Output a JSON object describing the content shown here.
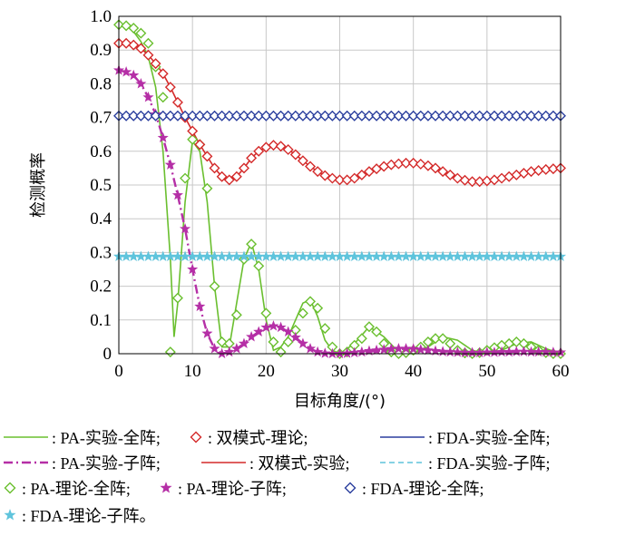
{
  "chart_data": {
    "type": "line",
    "xlabel": "目标角度/(°)",
    "ylabel": "检测概率",
    "xlim": [
      0,
      60
    ],
    "ylim": [
      0,
      1.0
    ],
    "xticks": [
      "0",
      "10",
      "20",
      "30",
      "40",
      "50",
      "60"
    ],
    "yticks": [
      "0",
      "0.1",
      "0.2",
      "0.3",
      "0.4",
      "0.5",
      "0.6",
      "0.7",
      "0.8",
      "0.9",
      "1.0"
    ],
    "grid": true,
    "legend_position": "bottom",
    "series": [
      {
        "name": ": PA-实验-全阵;",
        "color": "#6abf2f",
        "style": "solid",
        "marker": "none",
        "x": [
          0,
          1,
          2,
          3,
          4,
          5,
          6,
          7,
          7.5,
          8,
          9,
          10,
          11,
          12,
          13,
          14,
          15,
          16,
          17,
          18,
          19,
          20,
          21,
          22,
          23,
          24,
          25,
          26,
          27,
          28,
          29,
          30,
          32,
          34,
          36,
          38,
          40,
          42,
          44,
          46,
          48,
          50,
          52,
          54,
          56,
          58,
          60
        ],
        "y": [
          0.975,
          0.972,
          0.955,
          0.925,
          0.88,
          0.79,
          0.6,
          0.28,
          0.05,
          0.15,
          0.45,
          0.63,
          0.6,
          0.45,
          0.2,
          0.02,
          0.02,
          0.15,
          0.28,
          0.33,
          0.25,
          0.1,
          0.01,
          0.02,
          0.05,
          0.1,
          0.15,
          0.16,
          0.11,
          0.04,
          0.01,
          0.0,
          0.03,
          0.08,
          0.05,
          0.005,
          0.0,
          0.02,
          0.05,
          0.04,
          0.01,
          0.0,
          0.01,
          0.03,
          0.035,
          0.015,
          0.0
        ]
      },
      {
        "name": ": PA-实验-子阵;",
        "color": "#b52fa6",
        "style": "dashdot",
        "marker": "none",
        "x": [
          0,
          1,
          2,
          3,
          4,
          5,
          6,
          7,
          8,
          9,
          10,
          11,
          12,
          13,
          14,
          15,
          16,
          17,
          18,
          19,
          20,
          21,
          22,
          23,
          24,
          25,
          26,
          27,
          28,
          29,
          30,
          33,
          36,
          39,
          42,
          45,
          48,
          51,
          54,
          57,
          60
        ],
        "y": [
          0.84,
          0.835,
          0.825,
          0.8,
          0.76,
          0.71,
          0.64,
          0.56,
          0.47,
          0.37,
          0.25,
          0.14,
          0.06,
          0.015,
          0.0,
          0.005,
          0.015,
          0.03,
          0.05,
          0.065,
          0.078,
          0.082,
          0.078,
          0.065,
          0.048,
          0.03,
          0.015,
          0.005,
          0.001,
          0.0,
          0.0,
          0.004,
          0.01,
          0.015,
          0.012,
          0.005,
          0.002,
          0.004,
          0.006,
          0.005,
          0.004
        ]
      },
      {
        "name": ": 双模式-实验;",
        "color": "#d42a2a",
        "style": "solid",
        "marker": "none",
        "x": [
          0,
          1,
          2,
          3,
          4,
          5,
          6,
          7,
          8,
          9,
          10,
          11,
          12,
          13,
          14,
          15,
          16,
          17,
          18,
          19,
          20,
          21,
          22,
          23,
          24,
          25,
          26,
          27,
          28,
          29,
          30,
          31,
          32,
          33,
          34,
          35,
          36,
          37,
          38,
          39,
          40,
          41,
          42,
          43,
          44,
          45,
          46,
          47,
          48,
          49,
          50,
          51,
          52,
          53,
          54,
          55,
          56,
          57,
          58,
          59,
          60
        ],
        "y": [
          0.92,
          0.92,
          0.915,
          0.905,
          0.885,
          0.86,
          0.83,
          0.79,
          0.745,
          0.7,
          0.66,
          0.62,
          0.585,
          0.55,
          0.525,
          0.515,
          0.525,
          0.55,
          0.58,
          0.6,
          0.612,
          0.618,
          0.615,
          0.605,
          0.59,
          0.572,
          0.555,
          0.54,
          0.528,
          0.52,
          0.515,
          0.515,
          0.52,
          0.53,
          0.54,
          0.548,
          0.555,
          0.56,
          0.563,
          0.565,
          0.565,
          0.562,
          0.557,
          0.55,
          0.54,
          0.53,
          0.52,
          0.514,
          0.51,
          0.51,
          0.512,
          0.515,
          0.52,
          0.525,
          0.53,
          0.535,
          0.54,
          0.543,
          0.546,
          0.548,
          0.55
        ]
      },
      {
        "name": ": FDA-实验-全阵;",
        "color": "#2b3f9e",
        "style": "solid",
        "marker": "none",
        "x": [
          0,
          60
        ],
        "y": [
          0.705,
          0.705
        ]
      },
      {
        "name": ": FDA-实验-子阵;",
        "color": "#5fc4dc",
        "style": "dashed",
        "marker": "none",
        "x": [
          0,
          60
        ],
        "y": [
          0.288,
          0.288
        ]
      },
      {
        "name": ": PA-理论-全阵;",
        "color": "#6abf2f",
        "style": "none",
        "marker": "diamond",
        "x": [
          0,
          1,
          2,
          3,
          4,
          5,
          6,
          7,
          8,
          9,
          10,
          11,
          12,
          13,
          14,
          15,
          16,
          17,
          18,
          19,
          20,
          21,
          22,
          23,
          24,
          25,
          26,
          27,
          28,
          29,
          30,
          31,
          32,
          33,
          34,
          35,
          36,
          37,
          38,
          39,
          40,
          41,
          42,
          43,
          44,
          45,
          46,
          47,
          48,
          49,
          50,
          51,
          52,
          53,
          54,
          55,
          56,
          57,
          58,
          59,
          60
        ],
        "y": [
          0.975,
          0.972,
          0.965,
          0.95,
          0.92,
          0.85,
          0.76,
          0.005,
          0.165,
          0.52,
          0.635,
          0.62,
          0.49,
          0.2,
          0.035,
          0.03,
          0.115,
          0.28,
          0.325,
          0.26,
          0.12,
          0.035,
          0.005,
          0.035,
          0.07,
          0.12,
          0.155,
          0.135,
          0.075,
          0.02,
          0.0,
          0.005,
          0.025,
          0.045,
          0.08,
          0.065,
          0.03,
          0.005,
          0.0,
          0.003,
          0.01,
          0.02,
          0.035,
          0.045,
          0.045,
          0.03,
          0.01,
          0.002,
          0.0,
          0.003,
          0.01,
          0.018,
          0.025,
          0.03,
          0.035,
          0.03,
          0.02,
          0.01,
          0.003,
          0.0,
          0.0
        ]
      },
      {
        "name": ": PA-理论-子阵;",
        "color": "#b52fa6",
        "style": "none",
        "marker": "star",
        "x": [
          0,
          1,
          2,
          3,
          4,
          5,
          6,
          7,
          8,
          9,
          10,
          11,
          12,
          13,
          14,
          15,
          16,
          17,
          18,
          19,
          20,
          21,
          22,
          23,
          24,
          25,
          26,
          27,
          28,
          29,
          30,
          31,
          32,
          33,
          34,
          35,
          36,
          37,
          38,
          39,
          40,
          41,
          42,
          43,
          44,
          45,
          46,
          47,
          48,
          49,
          50,
          51,
          52,
          53,
          54,
          55,
          56,
          57,
          58,
          59,
          60
        ],
        "y": [
          0.84,
          0.835,
          0.825,
          0.8,
          0.76,
          0.71,
          0.64,
          0.56,
          0.47,
          0.37,
          0.25,
          0.14,
          0.06,
          0.015,
          0.0,
          0.005,
          0.015,
          0.03,
          0.05,
          0.065,
          0.078,
          0.082,
          0.078,
          0.065,
          0.048,
          0.03,
          0.015,
          0.005,
          0.001,
          0.0,
          0.0,
          0.001,
          0.003,
          0.005,
          0.008,
          0.01,
          0.012,
          0.014,
          0.015,
          0.015,
          0.014,
          0.012,
          0.01,
          0.008,
          0.006,
          0.005,
          0.004,
          0.003,
          0.003,
          0.003,
          0.004,
          0.004,
          0.005,
          0.005,
          0.006,
          0.006,
          0.005,
          0.005,
          0.005,
          0.004,
          0.004
        ]
      },
      {
        "name": ": 双模式-理论;",
        "color": "#d42a2a",
        "style": "none",
        "marker": "diamond",
        "x": [
          0,
          1,
          2,
          3,
          4,
          5,
          6,
          7,
          8,
          9,
          10,
          11,
          12,
          13,
          14,
          15,
          16,
          17,
          18,
          19,
          20,
          21,
          22,
          23,
          24,
          25,
          26,
          27,
          28,
          29,
          30,
          31,
          32,
          33,
          34,
          35,
          36,
          37,
          38,
          39,
          40,
          41,
          42,
          43,
          44,
          45,
          46,
          47,
          48,
          49,
          50,
          51,
          52,
          53,
          54,
          55,
          56,
          57,
          58,
          59,
          60
        ],
        "y": [
          0.92,
          0.92,
          0.915,
          0.905,
          0.885,
          0.86,
          0.83,
          0.79,
          0.745,
          0.7,
          0.66,
          0.62,
          0.585,
          0.55,
          0.525,
          0.515,
          0.525,
          0.55,
          0.58,
          0.6,
          0.612,
          0.618,
          0.615,
          0.605,
          0.59,
          0.572,
          0.555,
          0.54,
          0.528,
          0.52,
          0.515,
          0.515,
          0.52,
          0.53,
          0.54,
          0.548,
          0.555,
          0.56,
          0.563,
          0.565,
          0.565,
          0.562,
          0.557,
          0.55,
          0.54,
          0.53,
          0.52,
          0.514,
          0.51,
          0.51,
          0.512,
          0.515,
          0.52,
          0.525,
          0.53,
          0.535,
          0.54,
          0.543,
          0.546,
          0.548,
          0.55
        ]
      },
      {
        "name": ": FDA-理论-全阵;",
        "color": "#2b3f9e",
        "style": "none",
        "marker": "diamond",
        "x": [
          0,
          1,
          2,
          3,
          4,
          5,
          6,
          7,
          8,
          9,
          10,
          11,
          12,
          13,
          14,
          15,
          16,
          17,
          18,
          19,
          20,
          21,
          22,
          23,
          24,
          25,
          26,
          27,
          28,
          29,
          30,
          31,
          32,
          33,
          34,
          35,
          36,
          37,
          38,
          39,
          40,
          41,
          42,
          43,
          44,
          45,
          46,
          47,
          48,
          49,
          50,
          51,
          52,
          53,
          54,
          55,
          56,
          57,
          58,
          59,
          60
        ],
        "y": [
          0.705,
          0.705,
          0.705,
          0.705,
          0.705,
          0.705,
          0.705,
          0.705,
          0.705,
          0.705,
          0.705,
          0.705,
          0.705,
          0.705,
          0.705,
          0.705,
          0.705,
          0.705,
          0.705,
          0.705,
          0.705,
          0.705,
          0.705,
          0.705,
          0.705,
          0.705,
          0.705,
          0.705,
          0.705,
          0.705,
          0.705,
          0.705,
          0.705,
          0.705,
          0.705,
          0.705,
          0.705,
          0.705,
          0.705,
          0.705,
          0.705,
          0.705,
          0.705,
          0.705,
          0.705,
          0.705,
          0.705,
          0.705,
          0.705,
          0.705,
          0.705,
          0.705,
          0.705,
          0.705,
          0.705,
          0.705,
          0.705,
          0.705,
          0.705,
          0.705,
          0.705
        ]
      },
      {
        "name": ": FDA-理论-子阵。",
        "color": "#5fc4dc",
        "style": "none",
        "marker": "star",
        "x": [
          0,
          1,
          2,
          3,
          4,
          5,
          6,
          7,
          8,
          9,
          10,
          11,
          12,
          13,
          14,
          15,
          16,
          17,
          18,
          19,
          20,
          21,
          22,
          23,
          24,
          25,
          26,
          27,
          28,
          29,
          30,
          31,
          32,
          33,
          34,
          35,
          36,
          37,
          38,
          39,
          40,
          41,
          42,
          43,
          44,
          45,
          46,
          47,
          48,
          49,
          50,
          51,
          52,
          53,
          54,
          55,
          56,
          57,
          58,
          59,
          60
        ],
        "y": [
          0.288,
          0.288,
          0.288,
          0.288,
          0.288,
          0.288,
          0.288,
          0.288,
          0.288,
          0.288,
          0.288,
          0.288,
          0.288,
          0.288,
          0.288,
          0.288,
          0.288,
          0.288,
          0.288,
          0.288,
          0.288,
          0.288,
          0.288,
          0.288,
          0.288,
          0.288,
          0.288,
          0.288,
          0.288,
          0.288,
          0.288,
          0.288,
          0.288,
          0.288,
          0.288,
          0.288,
          0.288,
          0.288,
          0.288,
          0.288,
          0.288,
          0.288,
          0.288,
          0.288,
          0.288,
          0.288,
          0.288,
          0.288,
          0.288,
          0.288,
          0.288,
          0.288,
          0.288,
          0.288,
          0.288,
          0.288,
          0.288,
          0.288,
          0.288,
          0.288,
          0.288
        ]
      }
    ],
    "legend_order": [
      0,
      7,
      3,
      1,
      2,
      4,
      5,
      6,
      8,
      9
    ]
  }
}
